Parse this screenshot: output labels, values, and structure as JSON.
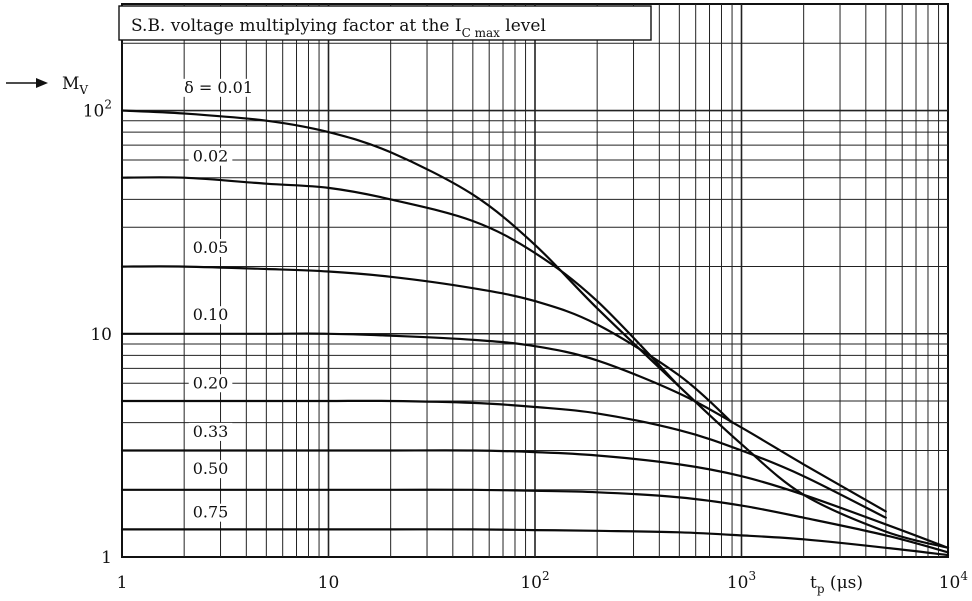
{
  "chart_data": {
    "type": "line",
    "title": {
      "main": "S.B. voltage multiplying factor at the I",
      "sub": "C max",
      "tail": " level"
    },
    "ylabel": {
      "main": "M",
      "sub": "V"
    },
    "xlabel": {
      "main": "t",
      "sub": "p",
      "tail": " (μs)"
    },
    "x_scale": "log",
    "y_scale": "log",
    "xlim": [
      1,
      10000
    ],
    "ylim": [
      1,
      300
    ],
    "grid": true,
    "x_ticks": [
      {
        "value": 1,
        "base": "1",
        "exp": ""
      },
      {
        "value": 10,
        "base": "10",
        "exp": ""
      },
      {
        "value": 100,
        "base": "10",
        "exp": "2"
      },
      {
        "value": 1000,
        "base": "10",
        "exp": "3"
      },
      {
        "value": 10000,
        "base": "10",
        "exp": "4"
      }
    ],
    "y_ticks": [
      {
        "value": 1,
        "base": "1",
        "exp": ""
      },
      {
        "value": 10,
        "base": "10",
        "exp": ""
      },
      {
        "value": 100,
        "base": "10",
        "exp": "2"
      }
    ],
    "series": [
      {
        "name": "δ = 0.01",
        "label": "δ = 0.01",
        "label_x": 2.0,
        "label_y": 120,
        "x": [
          1,
          2,
          5,
          10,
          20,
          50,
          100,
          200,
          500,
          1000,
          2000,
          5000,
          10000
        ],
        "y": [
          100,
          97,
          90,
          80,
          65,
          42,
          25,
          13,
          5.8,
          3.2,
          1.9,
          1.3,
          1.1
        ]
      },
      {
        "name": "0.02",
        "label": "0.02",
        "label_x": 2.2,
        "label_y": 59,
        "x": [
          1,
          2,
          5,
          10,
          20,
          50,
          100,
          200,
          500
        ],
        "y": [
          50,
          50,
          47,
          45,
          40,
          32,
          23,
          14,
          5.8
        ]
      },
      {
        "name": "0.05",
        "label": "0.05",
        "label_x": 2.2,
        "label_y": 23,
        "x": [
          1,
          2,
          5,
          10,
          20,
          50,
          100,
          200,
          500,
          900
        ],
        "y": [
          20,
          20,
          19.5,
          19,
          18,
          16,
          14,
          11,
          6.5,
          4.0
        ]
      },
      {
        "name": "0.10",
        "label": "0.10",
        "label_x": 2.2,
        "label_y": 11.5,
        "x": [
          1,
          2,
          5,
          10,
          20,
          50,
          100,
          200,
          500,
          1000,
          2000,
          5000
        ],
        "y": [
          10,
          10,
          10,
          10,
          9.8,
          9.4,
          8.8,
          7.6,
          5.4,
          3.8,
          2.6,
          1.6
        ]
      },
      {
        "name": "0.20",
        "label": "0.20",
        "label_x": 2.2,
        "label_y": 5.7,
        "x": [
          1,
          2,
          5,
          10,
          20,
          50,
          100,
          200,
          500,
          1000,
          2000,
          5000
        ],
        "y": [
          5,
          5,
          5,
          5,
          5,
          4.9,
          4.7,
          4.4,
          3.7,
          3.0,
          2.3,
          1.5
        ]
      },
      {
        "name": "0.33",
        "label": "0.33",
        "label_x": 2.2,
        "label_y": 3.45,
        "x": [
          1,
          2,
          5,
          10,
          20,
          50,
          100,
          200,
          500,
          1000,
          2000,
          5000,
          10000
        ],
        "y": [
          3,
          3,
          3,
          3,
          3,
          3,
          2.95,
          2.85,
          2.6,
          2.3,
          1.9,
          1.4,
          1.1
        ]
      },
      {
        "name": "0.50",
        "label": "0.50",
        "label_x": 2.2,
        "label_y": 2.35,
        "x": [
          1,
          2,
          5,
          10,
          20,
          50,
          100,
          200,
          500,
          1000,
          2000,
          5000,
          10000
        ],
        "y": [
          2,
          2,
          2,
          2,
          2,
          2,
          1.98,
          1.95,
          1.85,
          1.7,
          1.5,
          1.25,
          1.05
        ]
      },
      {
        "name": "0.75",
        "label": "0.75",
        "label_x": 2.2,
        "label_y": 1.5,
        "x": [
          1,
          2,
          5,
          10,
          20,
          50,
          100,
          200,
          500,
          1000,
          2000,
          5000,
          10000
        ],
        "y": [
          1.33,
          1.33,
          1.33,
          1.33,
          1.33,
          1.33,
          1.32,
          1.31,
          1.29,
          1.25,
          1.2,
          1.1,
          1.02
        ]
      }
    ]
  }
}
